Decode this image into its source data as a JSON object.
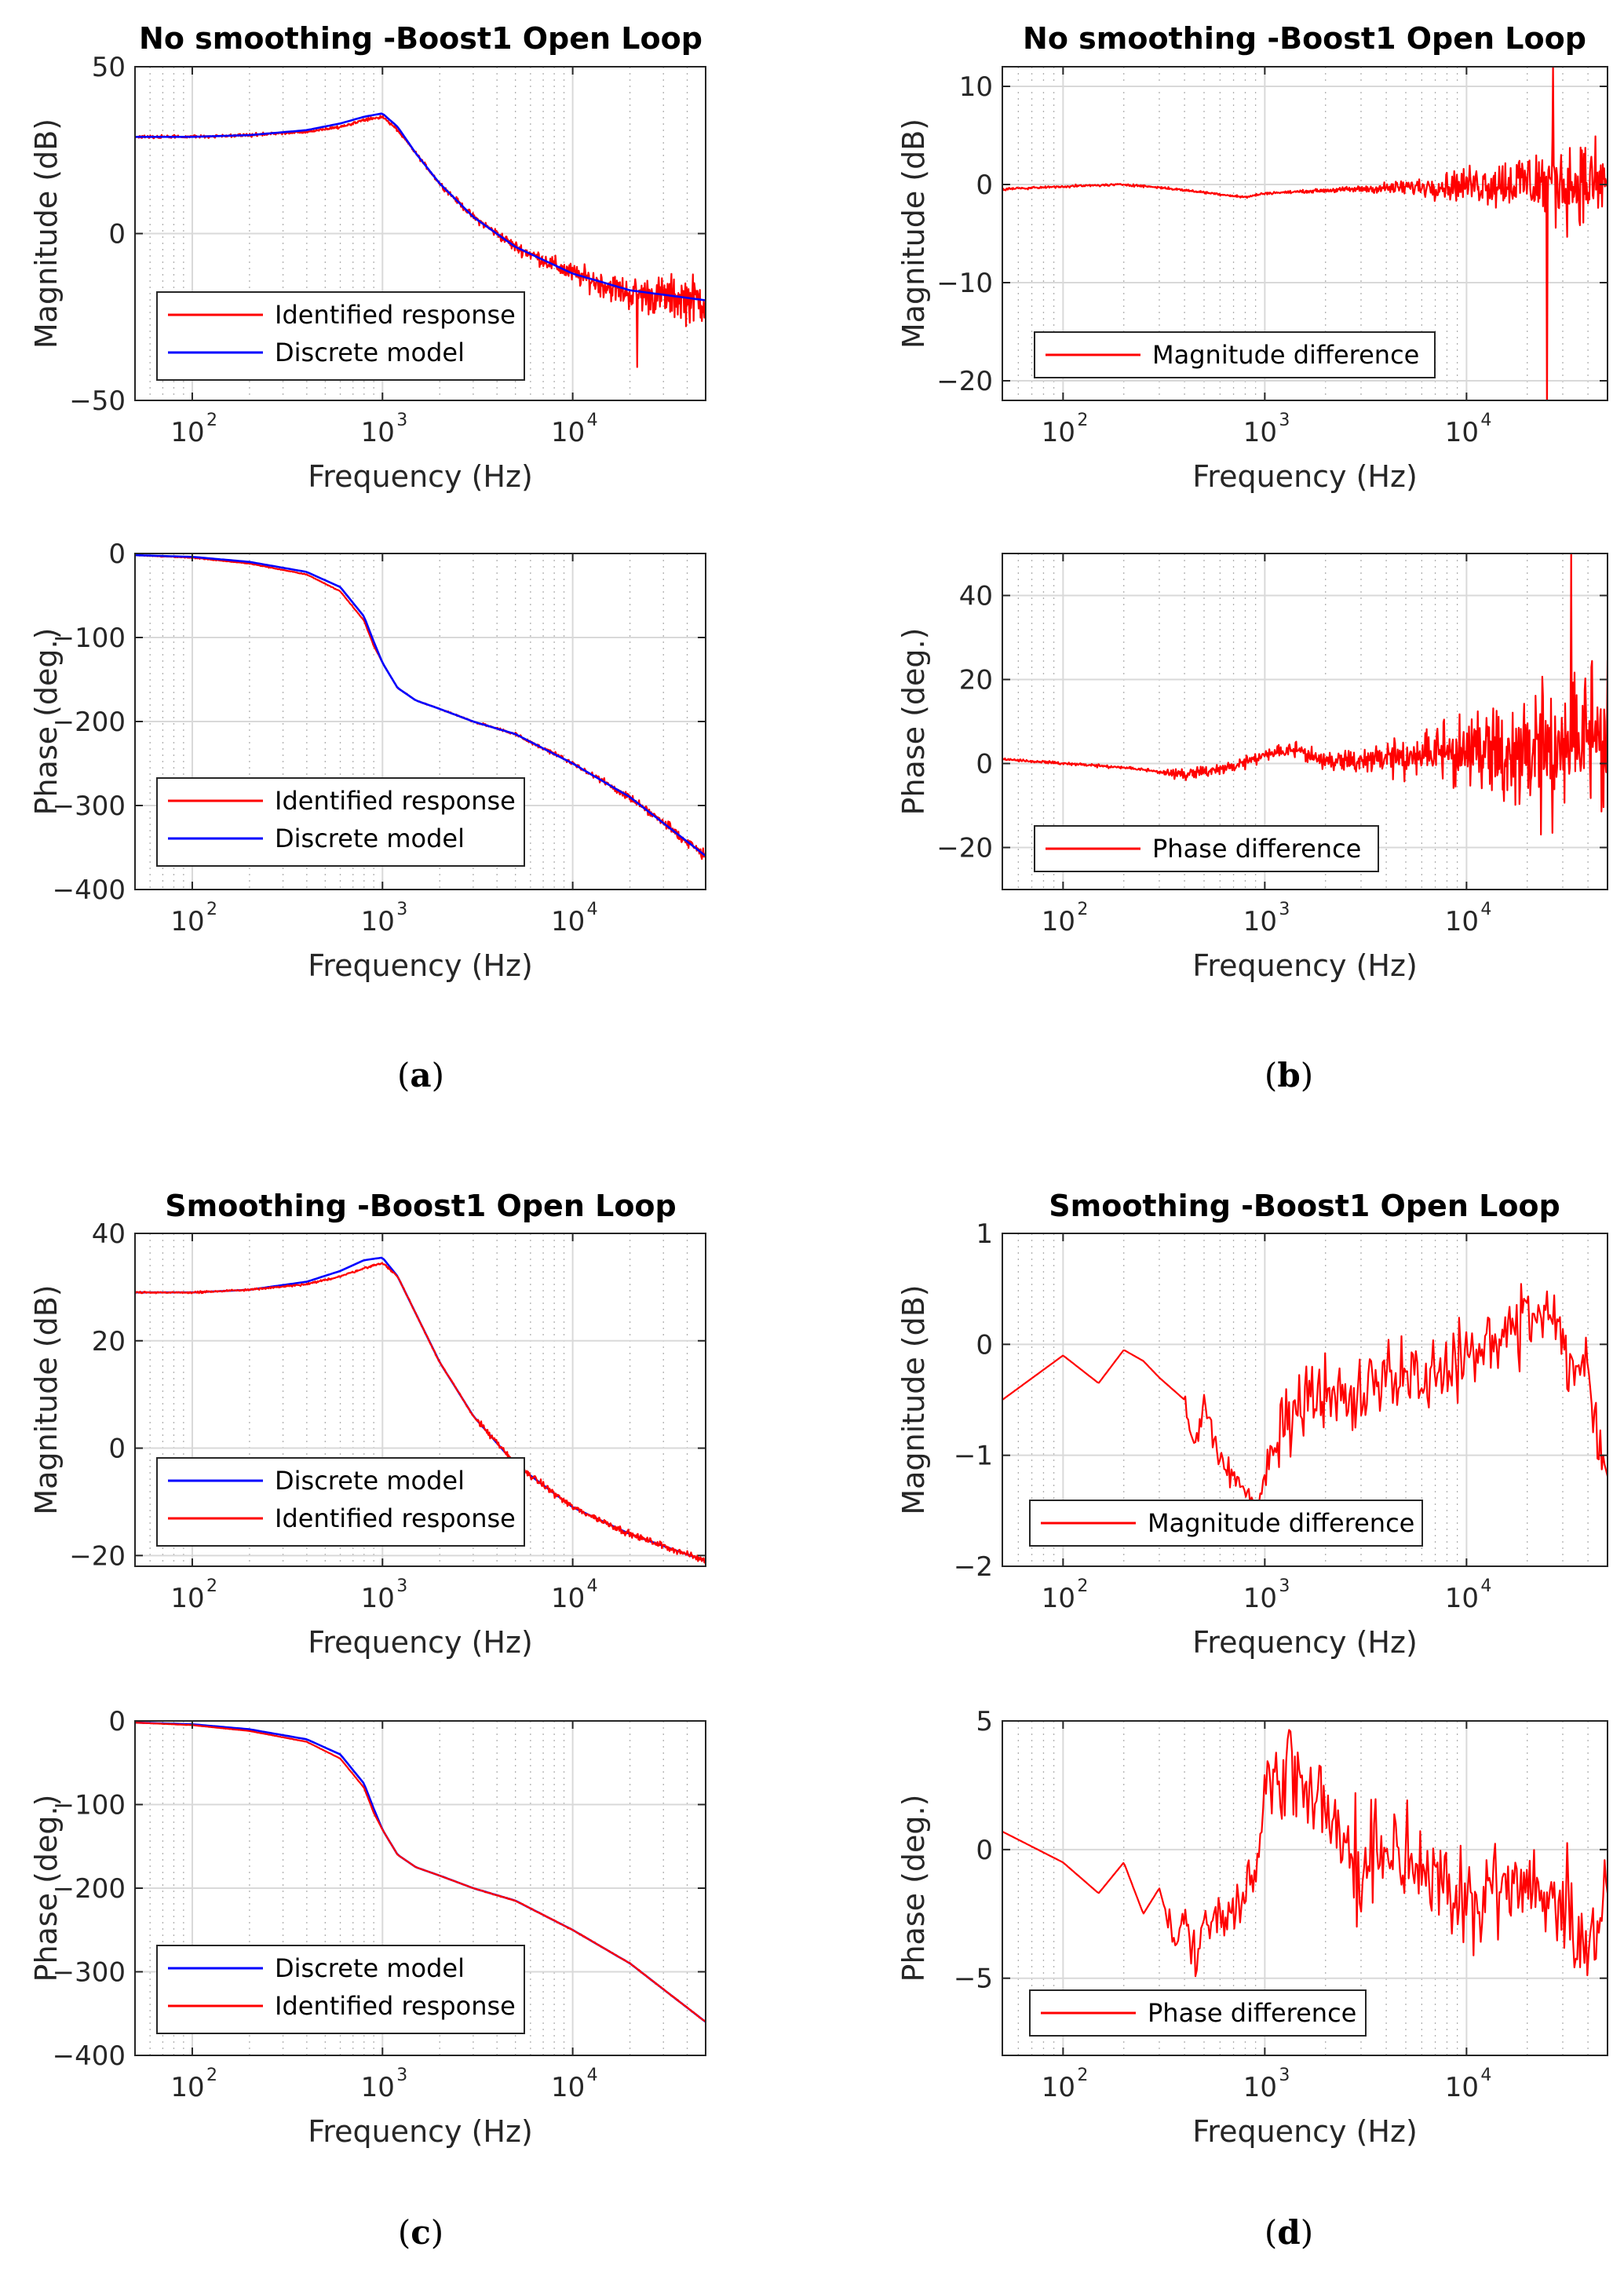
{
  "panel_labels": [
    {
      "text": "a",
      "open": "(",
      "close": ")"
    },
    {
      "text": "b",
      "open": "(",
      "close": ")"
    },
    {
      "text": "c",
      "open": "(",
      "close": ")"
    },
    {
      "text": "d",
      "open": "(",
      "close": ")"
    }
  ],
  "colors": {
    "identified": "#ff0000",
    "discrete": "#0000ff",
    "difference": "#ff0000"
  },
  "chart_data": [
    {
      "id": "a-mag",
      "type": "line",
      "panel": "a",
      "title": "No smoothing -Boost1 Open Loop",
      "xlabel": "Frequency (Hz)",
      "ylabel": "Magnitude (dB)",
      "xscale": "log",
      "xlim": [
        50,
        50000
      ],
      "ylim": [
        -50,
        50
      ],
      "xticks": [
        100,
        1000,
        10000
      ],
      "xticklabels": [
        "10",
        "10",
        "10"
      ],
      "xtickexp": [
        "2",
        "3",
        "4"
      ],
      "yticks": [
        -50,
        0,
        50
      ],
      "yticklabels": [
        "−50",
        "0",
        "50"
      ],
      "grid": true,
      "legend": "bottom-left",
      "series": [
        {
          "name": "Identified response",
          "color": "#ff0000",
          "noise": "high",
          "x": [
            50,
            100,
            200,
            400,
            600,
            800,
            1000,
            1200,
            1500,
            2000,
            3000,
            5000,
            10000,
            20000,
            50000
          ],
          "y": [
            29,
            29,
            29.5,
            30.5,
            32,
            34,
            35,
            31,
            24,
            15,
            5,
            -4,
            -12,
            -18,
            -20
          ]
        },
        {
          "name": "Discrete model",
          "color": "#0000ff",
          "noise": "none",
          "x": [
            50,
            100,
            200,
            400,
            600,
            800,
            1000,
            1200,
            1500,
            2000,
            3000,
            5000,
            10000,
            20000,
            50000
          ],
          "y": [
            29,
            29,
            29.5,
            31,
            33,
            35,
            36,
            32,
            24,
            15,
            5,
            -4,
            -12,
            -17,
            -20
          ]
        }
      ]
    },
    {
      "id": "a-phase",
      "type": "line",
      "panel": "a",
      "title": "",
      "xlabel": "Frequency (Hz)",
      "ylabel": "Phase (deg.)",
      "xscale": "log",
      "xlim": [
        50,
        50000
      ],
      "ylim": [
        -400,
        0
      ],
      "xticks": [
        100,
        1000,
        10000
      ],
      "xticklabels": [
        "10",
        "10",
        "10"
      ],
      "xtickexp": [
        "2",
        "3",
        "4"
      ],
      "yticks": [
        -400,
        -300,
        -200,
        -100,
        0
      ],
      "yticklabels": [
        "−400",
        "−300",
        "−200",
        "−100",
        "0"
      ],
      "grid": true,
      "legend": "bottom-left",
      "series": [
        {
          "name": "Identified response",
          "color": "#ff0000",
          "noise": "high",
          "x": [
            50,
            100,
            200,
            400,
            600,
            800,
            900,
            1000,
            1200,
            1500,
            2000,
            3000,
            5000,
            10000,
            20000,
            50000
          ],
          "y": [
            -2,
            -5,
            -12,
            -25,
            -45,
            -80,
            -110,
            -130,
            -160,
            -175,
            -185,
            -200,
            -215,
            -250,
            -290,
            -360
          ]
        },
        {
          "name": "Discrete model",
          "color": "#0000ff",
          "noise": "none",
          "x": [
            50,
            100,
            200,
            400,
            600,
            800,
            900,
            1000,
            1200,
            1500,
            2000,
            3000,
            5000,
            10000,
            20000,
            50000
          ],
          "y": [
            -2,
            -4,
            -10,
            -22,
            -40,
            -75,
            -105,
            -130,
            -160,
            -175,
            -185,
            -200,
            -215,
            -250,
            -290,
            -360
          ]
        }
      ]
    },
    {
      "id": "b-mag",
      "type": "line",
      "panel": "b",
      "title": "No smoothing -Boost1 Open Loop",
      "xlabel": "Frequency (Hz)",
      "ylabel": "Magnitude (dB)",
      "xscale": "log",
      "xlim": [
        50,
        50000
      ],
      "ylim": [
        -22,
        12
      ],
      "xticks": [
        100,
        1000,
        10000
      ],
      "xticklabels": [
        "10",
        "10",
        "10"
      ],
      "xtickexp": [
        "2",
        "3",
        "4"
      ],
      "yticks": [
        -20,
        -10,
        0,
        10
      ],
      "yticklabels": [
        "−20",
        "−10",
        "0",
        "10"
      ],
      "grid": true,
      "legend": "bottom-left",
      "series": [
        {
          "name": "Magnitude difference",
          "color": "#ff0000",
          "noise": "rising",
          "x": [
            50,
            100,
            200,
            300,
            500,
            800,
            1000,
            2000,
            5000,
            10000,
            20000,
            30000,
            50000
          ],
          "y": [
            -0.5,
            -0.2,
            0,
            -0.3,
            -0.8,
            -1.3,
            -0.9,
            -0.6,
            -0.3,
            0,
            0.3,
            0.2,
            0
          ]
        }
      ]
    },
    {
      "id": "b-phase",
      "type": "line",
      "panel": "b",
      "title": "",
      "xlabel": "Frequency (Hz)",
      "ylabel": "Phase (deg.)",
      "xscale": "log",
      "xlim": [
        50,
        50000
      ],
      "ylim": [
        -30,
        50
      ],
      "xticks": [
        100,
        1000,
        10000
      ],
      "xticklabels": [
        "10",
        "10",
        "10"
      ],
      "xtickexp": [
        "2",
        "3",
        "4"
      ],
      "yticks": [
        -20,
        0,
        20,
        40
      ],
      "yticklabels": [
        "−20",
        "0",
        "20",
        "40"
      ],
      "grid": true,
      "legend": "bottom-left",
      "series": [
        {
          "name": "Phase difference",
          "color": "#ff0000",
          "noise": "rising-phase",
          "x": [
            50,
            100,
            200,
            300,
            400,
            500,
            700,
            1000,
            1500,
            2000,
            5000,
            10000,
            20000,
            50000
          ],
          "y": [
            1,
            0,
            -1,
            -2,
            -3,
            -2,
            -1,
            2,
            3,
            0,
            1,
            2,
            0,
            5
          ]
        }
      ]
    },
    {
      "id": "c-mag",
      "type": "line",
      "panel": "c",
      "title": "Smoothing -Boost1 Open Loop",
      "xlabel": "Frequency (Hz)",
      "ylabel": "Magnitude (dB)",
      "xscale": "log",
      "xlim": [
        50,
        50000
      ],
      "ylim": [
        -22,
        40
      ],
      "xticks": [
        100,
        1000,
        10000
      ],
      "xticklabels": [
        "10",
        "10",
        "10"
      ],
      "xtickexp": [
        "2",
        "3",
        "4"
      ],
      "yticks": [
        -20,
        0,
        20,
        40
      ],
      "yticklabels": [
        "−20",
        "0",
        "20",
        "40"
      ],
      "grid": true,
      "legend": "bottom-left",
      "series": [
        {
          "name": "Discrete model",
          "color": "#0000ff",
          "noise": "none",
          "x": [
            50,
            100,
            200,
            400,
            600,
            800,
            1000,
            1200,
            1500,
            2000,
            3000,
            5000,
            10000,
            20000,
            50000
          ],
          "y": [
            29,
            29,
            29.5,
            31,
            33,
            35,
            35.5,
            32,
            25,
            16,
            6,
            -3,
            -11,
            -16,
            -21
          ]
        },
        {
          "name": "Identified response",
          "color": "#ff0000",
          "noise": "low",
          "x": [
            50,
            100,
            200,
            400,
            600,
            800,
            1000,
            1200,
            1500,
            2000,
            3000,
            5000,
            10000,
            20000,
            50000
          ],
          "y": [
            29,
            29,
            29.5,
            30.5,
            32,
            33.5,
            34.5,
            32,
            25,
            16,
            6,
            -3,
            -11,
            -16,
            -21
          ]
        }
      ]
    },
    {
      "id": "c-phase",
      "type": "line",
      "panel": "c",
      "title": "",
      "xlabel": "Frequency (Hz)",
      "ylabel": "Phase (deg.)",
      "xscale": "log",
      "xlim": [
        50,
        50000
      ],
      "ylim": [
        -400,
        0
      ],
      "xticks": [
        100,
        1000,
        10000
      ],
      "xticklabels": [
        "10",
        "10",
        "10"
      ],
      "xtickexp": [
        "2",
        "3",
        "4"
      ],
      "yticks": [
        -400,
        -300,
        -200,
        -100,
        0
      ],
      "yticklabels": [
        "−400",
        "−300",
        "−200",
        "−100",
        "0"
      ],
      "grid": true,
      "legend": "bottom-left",
      "series": [
        {
          "name": "Discrete model",
          "color": "#0000ff",
          "noise": "none",
          "x": [
            50,
            100,
            200,
            400,
            600,
            800,
            900,
            1000,
            1200,
            1500,
            2000,
            3000,
            5000,
            10000,
            20000,
            50000
          ],
          "y": [
            -2,
            -4,
            -10,
            -22,
            -40,
            -75,
            -105,
            -130,
            -160,
            -175,
            -185,
            -200,
            -215,
            -250,
            -290,
            -360
          ]
        },
        {
          "name": "Identified response",
          "color": "#ff0000",
          "noise": "low",
          "x": [
            50,
            100,
            200,
            400,
            600,
            800,
            900,
            1000,
            1200,
            1500,
            2000,
            3000,
            5000,
            10000,
            20000,
            50000
          ],
          "y": [
            -2,
            -5,
            -12,
            -25,
            -45,
            -80,
            -110,
            -130,
            -160,
            -175,
            -185,
            -200,
            -215,
            -250,
            -290,
            -360
          ]
        }
      ]
    },
    {
      "id": "d-mag",
      "type": "line",
      "panel": "d",
      "title": "Smoothing -Boost1 Open Loop",
      "xlabel": "Frequency (Hz)",
      "ylabel": "Magnitude (dB)",
      "xscale": "log",
      "xlim": [
        50,
        50000
      ],
      "ylim": [
        -2,
        1
      ],
      "xticks": [
        100,
        1000,
        10000
      ],
      "xticklabels": [
        "10",
        "10",
        "10"
      ],
      "xtickexp": [
        "2",
        "3",
        "4"
      ],
      "yticks": [
        -2,
        -1,
        0,
        1
      ],
      "yticklabels": [
        "−2",
        "−1",
        "0",
        "1"
      ],
      "grid": true,
      "legend": "bottom-left",
      "series": [
        {
          "name": "Magnitude difference",
          "color": "#ff0000",
          "noise": "medium-dmag",
          "x": [
            50,
            100,
            150,
            200,
            250,
            300,
            400,
            450,
            500,
            600,
            700,
            800,
            900,
            1000,
            1500,
            2000,
            3000,
            5000,
            10000,
            15000,
            20000,
            25000,
            30000,
            40000,
            50000
          ],
          "y": [
            -0.5,
            -0.1,
            -0.35,
            -0.05,
            -0.15,
            -0.3,
            -0.5,
            -0.9,
            -0.6,
            -1.0,
            -1.2,
            -1.3,
            -1.5,
            -1.2,
            -0.6,
            -0.5,
            -0.4,
            -0.3,
            -0.2,
            0.1,
            0.2,
            0.3,
            0,
            -0.3,
            -1.3
          ]
        }
      ]
    },
    {
      "id": "d-phase",
      "type": "line",
      "panel": "d",
      "title": "",
      "xlabel": "Frequency (Hz)",
      "ylabel": "Phase (deg.)",
      "xscale": "log",
      "xlim": [
        50,
        50000
      ],
      "ylim": [
        -8,
        5
      ],
      "xticks": [
        100,
        1000,
        10000
      ],
      "xticklabels": [
        "10",
        "10",
        "10"
      ],
      "xtickexp": [
        "2",
        "3",
        "4"
      ],
      "yticks": [
        -5,
        0,
        5
      ],
      "yticklabels": [
        "−5",
        "0",
        "5"
      ],
      "grid": true,
      "legend": "bottom-left",
      "series": [
        {
          "name": "Phase difference",
          "color": "#ff0000",
          "noise": "medium-dphase",
          "x": [
            50,
            100,
            150,
            200,
            250,
            300,
            350,
            400,
            450,
            500,
            600,
            700,
            800,
            900,
            1000,
            1200,
            1500,
            2000,
            3000,
            5000,
            7000,
            10000,
            15000,
            20000,
            30000,
            40000,
            50000
          ],
          "y": [
            0.7,
            -0.5,
            -1.7,
            -0.5,
            -2.5,
            -1.5,
            -3.5,
            -2.5,
            -4.2,
            -3,
            -2.5,
            -2,
            -1.5,
            -1,
            2,
            3,
            3,
            1,
            -1,
            0,
            -1.5,
            -2,
            -1.5,
            -1.5,
            -2,
            -4,
            -1
          ]
        }
      ]
    }
  ]
}
